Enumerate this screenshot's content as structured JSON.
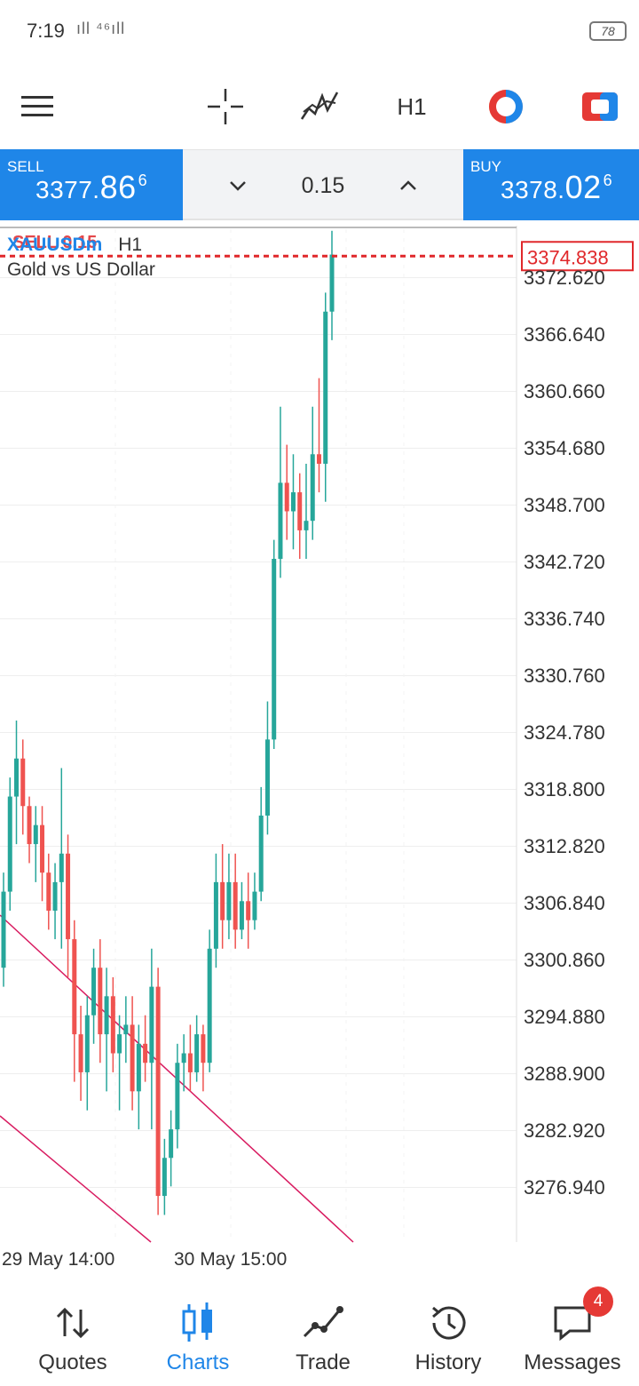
{
  "status_bar": {
    "time": "7:19",
    "signal": "ıll ⁴⁶ıll",
    "battery": "78"
  },
  "toolbar": {
    "timeframe": "H1"
  },
  "trade_panel": {
    "sell_label": "SELL",
    "sell_price_a": "3377.",
    "sell_price_b": "86",
    "sell_price_c": "6",
    "lot": "0.15",
    "buy_label": "BUY",
    "buy_price_a": "3378.",
    "buy_price_b": "02",
    "buy_price_c": "6"
  },
  "chart": {
    "symbol": "XAUUSDm",
    "timeframe": "H1",
    "description": "Gold vs US Dollar",
    "order_label": "SELL 0.15",
    "order_price": "3374.838",
    "price_labels": [
      "3372.620",
      "3366.640",
      "3360.660",
      "3354.680",
      "3348.700",
      "3342.720",
      "3336.740",
      "3330.760",
      "3324.780",
      "3318.800",
      "3312.820",
      "3306.840",
      "3300.860",
      "3294.880",
      "3288.900",
      "3282.920",
      "3276.940"
    ],
    "time_labels": [
      "29 May 14:00",
      "30 May 15:00"
    ],
    "colors": {
      "bull": "#26a69a",
      "bear": "#ef5350",
      "order_line": "#e0282b",
      "trendline": "#d81b60"
    }
  },
  "chart_data": {
    "type": "candlestick",
    "symbol": "XAUUSDm",
    "timeframe": "H1",
    "y_ticks": [
      3372.62,
      3366.64,
      3360.66,
      3354.68,
      3348.7,
      3342.72,
      3336.74,
      3330.76,
      3324.78,
      3318.8,
      3312.82,
      3306.84,
      3300.86,
      3294.88,
      3288.9,
      3282.92,
      3276.94
    ],
    "ylim": [
      3273.0,
      3377.6
    ],
    "x_ticks": [
      "29 May 14:00",
      "30 May 15:00"
    ],
    "order_line": 3374.838,
    "candles": [
      {
        "o": 3300,
        "h": 3310,
        "l": 3298,
        "c": 3308
      },
      {
        "o": 3308,
        "h": 3320,
        "l": 3306,
        "c": 3318
      },
      {
        "o": 3318,
        "h": 3326,
        "l": 3313,
        "c": 3322
      },
      {
        "o": 3322,
        "h": 3324,
        "l": 3314,
        "c": 3317
      },
      {
        "o": 3317,
        "h": 3318,
        "l": 3311,
        "c": 3313
      },
      {
        "o": 3313,
        "h": 3317,
        "l": 3309,
        "c": 3315
      },
      {
        "o": 3315,
        "h": 3317,
        "l": 3307,
        "c": 3310
      },
      {
        "o": 3310,
        "h": 3312,
        "l": 3304,
        "c": 3306
      },
      {
        "o": 3306,
        "h": 3311,
        "l": 3303,
        "c": 3309
      },
      {
        "o": 3309,
        "h": 3321,
        "l": 3302,
        "c": 3312
      },
      {
        "o": 3312,
        "h": 3314,
        "l": 3299,
        "c": 3303
      },
      {
        "o": 3303,
        "h": 3305,
        "l": 3288,
        "c": 3293
      },
      {
        "o": 3293,
        "h": 3296,
        "l": 3286,
        "c": 3289
      },
      {
        "o": 3289,
        "h": 3297,
        "l": 3285,
        "c": 3295
      },
      {
        "o": 3295,
        "h": 3302,
        "l": 3292,
        "c": 3300
      },
      {
        "o": 3300,
        "h": 3303,
        "l": 3290,
        "c": 3293
      },
      {
        "o": 3293,
        "h": 3300,
        "l": 3287,
        "c": 3297
      },
      {
        "o": 3297,
        "h": 3299,
        "l": 3289,
        "c": 3291
      },
      {
        "o": 3291,
        "h": 3295,
        "l": 3285,
        "c": 3293
      },
      {
        "o": 3293,
        "h": 3297,
        "l": 3290,
        "c": 3294
      },
      {
        "o": 3294,
        "h": 3297,
        "l": 3285,
        "c": 3287
      },
      {
        "o": 3287,
        "h": 3294,
        "l": 3283,
        "c": 3292
      },
      {
        "o": 3292,
        "h": 3295,
        "l": 3288,
        "c": 3290
      },
      {
        "o": 3290,
        "h": 3302,
        "l": 3283,
        "c": 3298
      },
      {
        "o": 3298,
        "h": 3300,
        "l": 3274,
        "c": 3276
      },
      {
        "o": 3276,
        "h": 3282,
        "l": 3274,
        "c": 3280
      },
      {
        "o": 3280,
        "h": 3285,
        "l": 3277,
        "c": 3283
      },
      {
        "o": 3283,
        "h": 3292,
        "l": 3281,
        "c": 3290
      },
      {
        "o": 3290,
        "h": 3293,
        "l": 3287,
        "c": 3291
      },
      {
        "o": 3291,
        "h": 3294,
        "l": 3287,
        "c": 3289
      },
      {
        "o": 3289,
        "h": 3295,
        "l": 3288,
        "c": 3293
      },
      {
        "o": 3293,
        "h": 3294,
        "l": 3287,
        "c": 3290
      },
      {
        "o": 3290,
        "h": 3304,
        "l": 3289,
        "c": 3302
      },
      {
        "o": 3302,
        "h": 3312,
        "l": 3300,
        "c": 3309
      },
      {
        "o": 3309,
        "h": 3313,
        "l": 3302,
        "c": 3305
      },
      {
        "o": 3305,
        "h": 3312,
        "l": 3303,
        "c": 3309
      },
      {
        "o": 3309,
        "h": 3312,
        "l": 3302,
        "c": 3304
      },
      {
        "o": 3304,
        "h": 3309,
        "l": 3303,
        "c": 3307
      },
      {
        "o": 3307,
        "h": 3310,
        "l": 3302,
        "c": 3305
      },
      {
        "o": 3305,
        "h": 3310,
        "l": 3304,
        "c": 3308
      },
      {
        "o": 3308,
        "h": 3319,
        "l": 3307,
        "c": 3316
      },
      {
        "o": 3316,
        "h": 3328,
        "l": 3314,
        "c": 3324
      },
      {
        "o": 3324,
        "h": 3345,
        "l": 3323,
        "c": 3343
      },
      {
        "o": 3343,
        "h": 3359,
        "l": 3341,
        "c": 3351
      },
      {
        "o": 3351,
        "h": 3355,
        "l": 3345,
        "c": 3348
      },
      {
        "o": 3348,
        "h": 3354,
        "l": 3344,
        "c": 3350
      },
      {
        "o": 3350,
        "h": 3352,
        "l": 3343,
        "c": 3346
      },
      {
        "o": 3346,
        "h": 3353,
        "l": 3343,
        "c": 3347
      },
      {
        "o": 3347,
        "h": 3359,
        "l": 3345,
        "c": 3354
      },
      {
        "o": 3354,
        "h": 3362,
        "l": 3350,
        "c": 3353
      },
      {
        "o": 3353,
        "h": 3371,
        "l": 3349,
        "c": 3369
      },
      {
        "o": 3369,
        "h": 3377.5,
        "l": 3366,
        "c": 3375
      }
    ]
  },
  "bottom_nav": {
    "items": [
      {
        "label": "Quotes"
      },
      {
        "label": "Charts"
      },
      {
        "label": "Trade"
      },
      {
        "label": "History"
      },
      {
        "label": "Messages"
      }
    ],
    "messages_badge": "4"
  }
}
